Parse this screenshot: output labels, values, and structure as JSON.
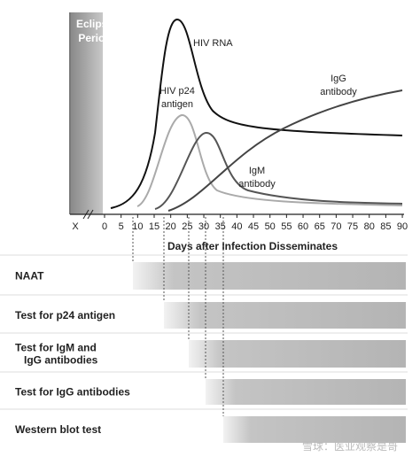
{
  "eclipse_label": [
    "Eclipse",
    "Period"
  ],
  "curve_labels": {
    "hiv_rna": [
      "HIV RNA"
    ],
    "p24": [
      "HIV p24",
      "antigen"
    ],
    "igg": [
      "IgG",
      "antibody"
    ],
    "igm": [
      "IgM",
      "antibody"
    ]
  },
  "axis": {
    "ticks": [
      "X",
      "0",
      "5",
      "10",
      "15",
      "20",
      "25",
      "30",
      "35",
      "40",
      "45",
      "50",
      "55",
      "60",
      "65",
      "70",
      "75",
      "80",
      "85",
      "90"
    ],
    "label": "Days after Infection Disseminates"
  },
  "tests": [
    [
      "NAAT"
    ],
    [
      "Test for p24 antigen"
    ],
    [
      "Test for IgM and",
      "IgG antibodies"
    ],
    [
      "Test for IgG antibodies"
    ],
    [
      "Western blot test"
    ]
  ],
  "watermark": "雪球：医业观察是哥"
}
